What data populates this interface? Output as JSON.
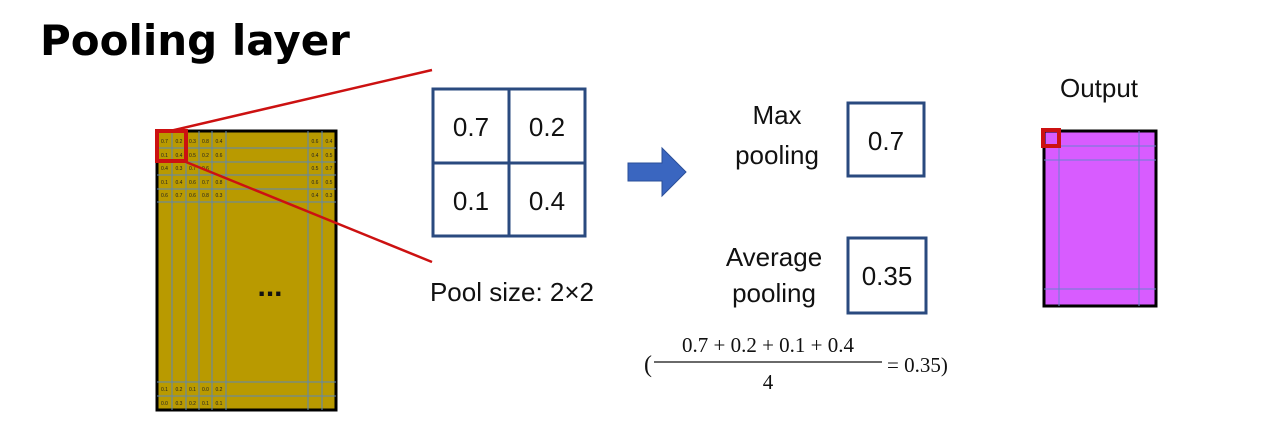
{
  "title": "Pooling layer",
  "input_matrix": {
    "top_rows": [
      [
        "0.7",
        "0.2",
        "0.3",
        "0.8",
        "0.4",
        "0.6",
        "0.4"
      ],
      [
        "0.1",
        "0.4",
        "0.5",
        "0.2",
        "0.6",
        "0.4",
        "0.5"
      ],
      [
        "0.4",
        "0.3",
        "0.7",
        "0.6",
        "",
        "0.5",
        "0.7"
      ],
      [
        "0.1",
        "0.4",
        "0.6",
        "0.7",
        "0.8",
        "0.6",
        "0.5"
      ],
      [
        "0.6",
        "0.7",
        "0.6",
        "0.8",
        "0.3",
        "0.4",
        "0.3"
      ]
    ],
    "bottom_rows": [
      [
        "0.1",
        "0.2",
        "0.1",
        "0.0",
        "0.2"
      ],
      [
        "0.0",
        "0.3",
        "0.2",
        "0.1",
        "0.1"
      ]
    ],
    "ellipsis": "...",
    "fill_color": "#b99a00"
  },
  "pool": {
    "cells": [
      "0.7",
      "0.2",
      "0.1",
      "0.4"
    ],
    "size_label": "Pool size: 2×2",
    "border_color": "#2a4a7f"
  },
  "arrow_color": "#3a66c0",
  "max_pooling": {
    "label_line1": "Max",
    "label_line2": "pooling",
    "value": "0.7"
  },
  "avg_pooling": {
    "label_line1": "Average",
    "label_line2": "pooling",
    "value": "0.35",
    "formula_numerator": "0.7 + 0.2 + 0.1 + 0.4",
    "formula_denominator": "4",
    "formula_open": "(",
    "formula_result": "= 0.35)"
  },
  "output": {
    "label": "Output",
    "fill_color": "#d85cff"
  },
  "highlight_color": "#cc1111"
}
